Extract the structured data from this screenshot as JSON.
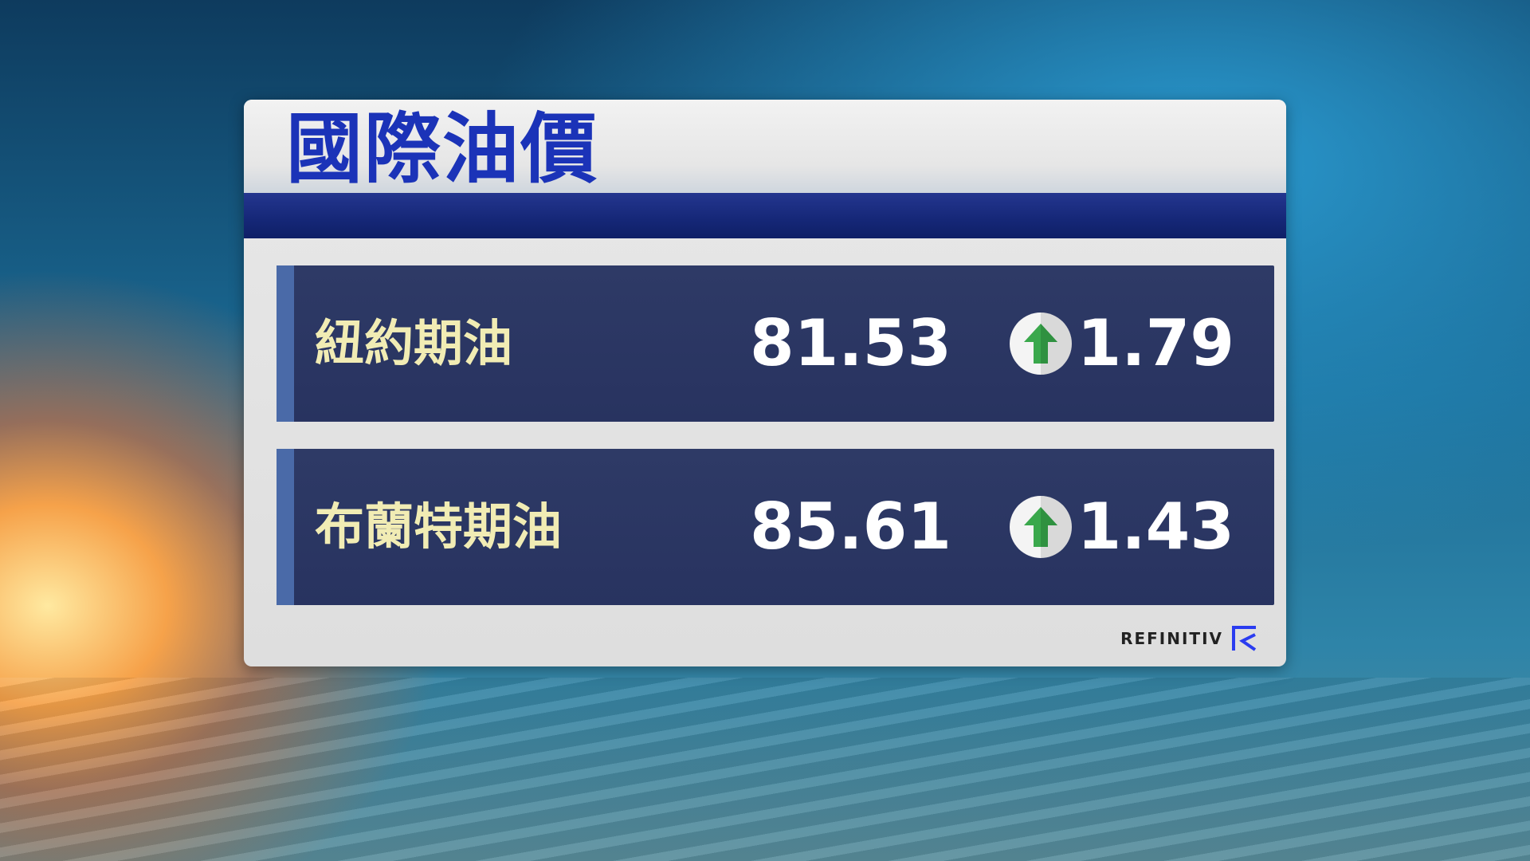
{
  "title": "國際油價",
  "rows": [
    {
      "label": "紐約期油",
      "price": "81.53",
      "direction": "up",
      "change": "1.79"
    },
    {
      "label": "布蘭特期油",
      "price": "85.61",
      "direction": "up",
      "change": "1.43"
    }
  ],
  "source": "REFINITIV",
  "colors": {
    "title": "#1b33b8",
    "label": "#f1ecb4",
    "up_arrow": "#3aa84c",
    "row_bg": "#2b3663"
  }
}
